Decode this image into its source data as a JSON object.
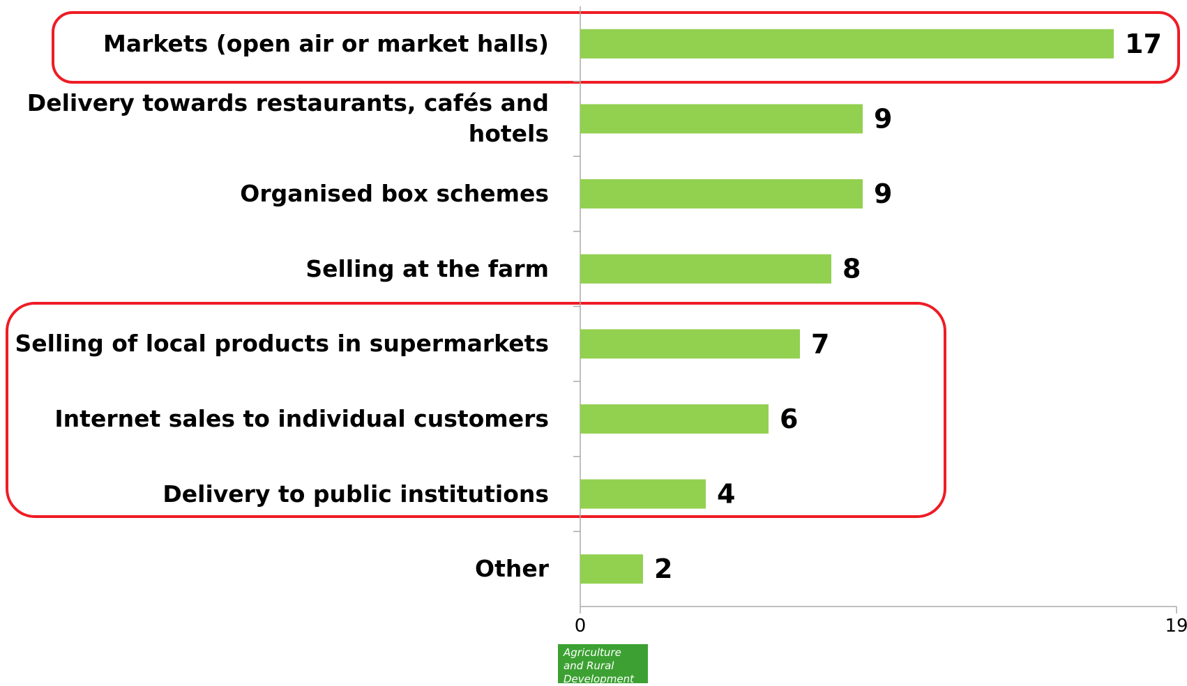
{
  "chart_data": {
    "type": "barh",
    "categories": [
      "Markets (open air or market halls)",
      "Delivery towards restaurants, cafés and hotels",
      "Organised box schemes",
      "Selling at the farm",
      "Selling of local products in supermarkets",
      "Internet sales to individual customers",
      "Delivery to public institutions",
      "Other"
    ],
    "values": [
      17,
      9,
      9,
      8,
      7,
      6,
      4,
      2
    ],
    "color": "#92d050",
    "xlim": [
      0,
      19
    ],
    "xticks": [
      0,
      19
    ],
    "grid": false
  },
  "logo": {
    "lines": [
      "Agriculture",
      "and Rural",
      "Development"
    ]
  }
}
